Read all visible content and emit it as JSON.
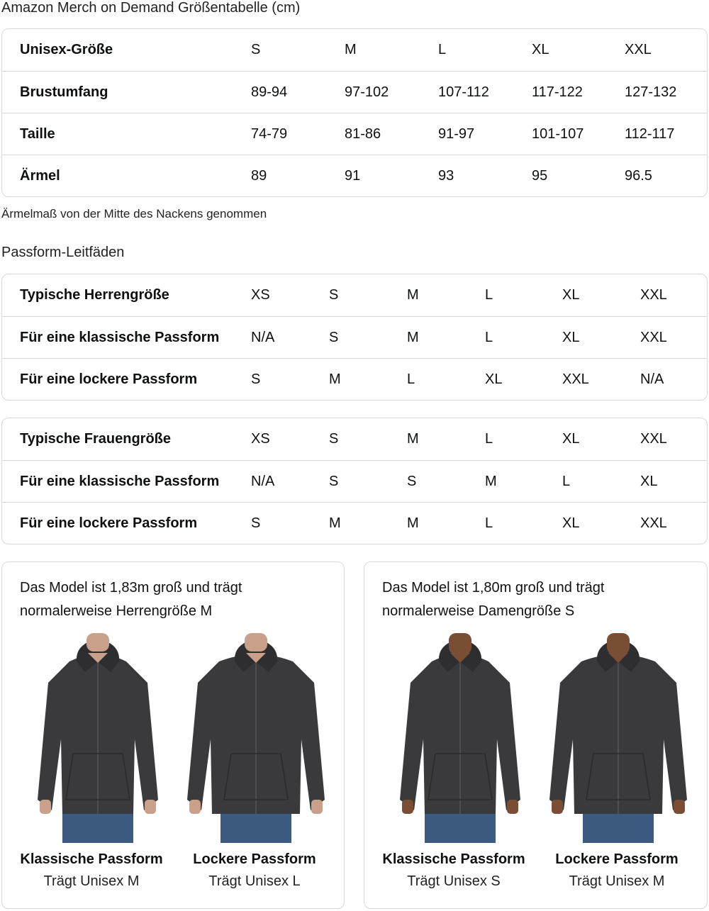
{
  "size_chart": {
    "title": "Amazon Merch on Demand Größentabelle (cm)",
    "rows": [
      {
        "label": "Unisex-Größe",
        "values": [
          "S",
          "M",
          "L",
          "XL",
          "XXL"
        ]
      },
      {
        "label": "Brustumfang",
        "values": [
          "89-94",
          "97-102",
          "107-112",
          "117-122",
          "127-132"
        ]
      },
      {
        "label": "Taille",
        "values": [
          "74-79",
          "81-86",
          "91-97",
          "101-107",
          "112-117"
        ]
      },
      {
        "label": "Ärmel",
        "values": [
          "89",
          "91",
          "93",
          "95",
          "96.5"
        ]
      }
    ],
    "note": "Ärmelmaß von der Mitte des Nackens genommen"
  },
  "fit_guides": {
    "title": "Passform-Leitfäden",
    "men": [
      {
        "label": "Typische Herrengröße",
        "values": [
          "XS",
          "S",
          "M",
          "L",
          "XL",
          "XXL"
        ]
      },
      {
        "label": "Für eine klassische Passform",
        "values": [
          "N/A",
          "S",
          "M",
          "L",
          "XL",
          "XXL"
        ]
      },
      {
        "label": "Für eine lockere Passform",
        "values": [
          "S",
          "M",
          "L",
          "XL",
          "XXL",
          "N/A"
        ]
      }
    ],
    "women": [
      {
        "label": "Typische Frauengröße",
        "values": [
          "XS",
          "S",
          "M",
          "L",
          "XL",
          "XXL"
        ]
      },
      {
        "label": "Für eine klassische Passform",
        "values": [
          "N/A",
          "S",
          "S",
          "M",
          "L",
          "XL"
        ]
      },
      {
        "label": "Für eine lockere Passform",
        "values": [
          "S",
          "M",
          "M",
          "L",
          "XL",
          "XXL"
        ]
      }
    ]
  },
  "models": [
    {
      "heading": "Das Model ist 1,83m groß und trägt normalerweise Herrengröße M",
      "photos": [
        {
          "title": "Klassische Passform",
          "subtitle": "Trägt Unisex M",
          "skin": "#c9a089",
          "fit": "classic"
        },
        {
          "title": "Lockere Passform",
          "subtitle": "Trägt Unisex L",
          "skin": "#c9a089",
          "fit": "loose"
        }
      ]
    },
    {
      "heading": "Das Model ist 1,80m groß und trägt normalerweise Damengröße S",
      "photos": [
        {
          "title": "Klassische Passform",
          "subtitle": "Trägt Unisex S",
          "skin": "#7a4e35",
          "fit": "classic"
        },
        {
          "title": "Lockere Passform",
          "subtitle": "Trägt Unisex M",
          "skin": "#7a4e35",
          "fit": "loose"
        }
      ]
    }
  ],
  "colors": {
    "border": "#d5d9d9",
    "hoodie": "#3a3a3c",
    "jeans": "#3d5a80"
  }
}
